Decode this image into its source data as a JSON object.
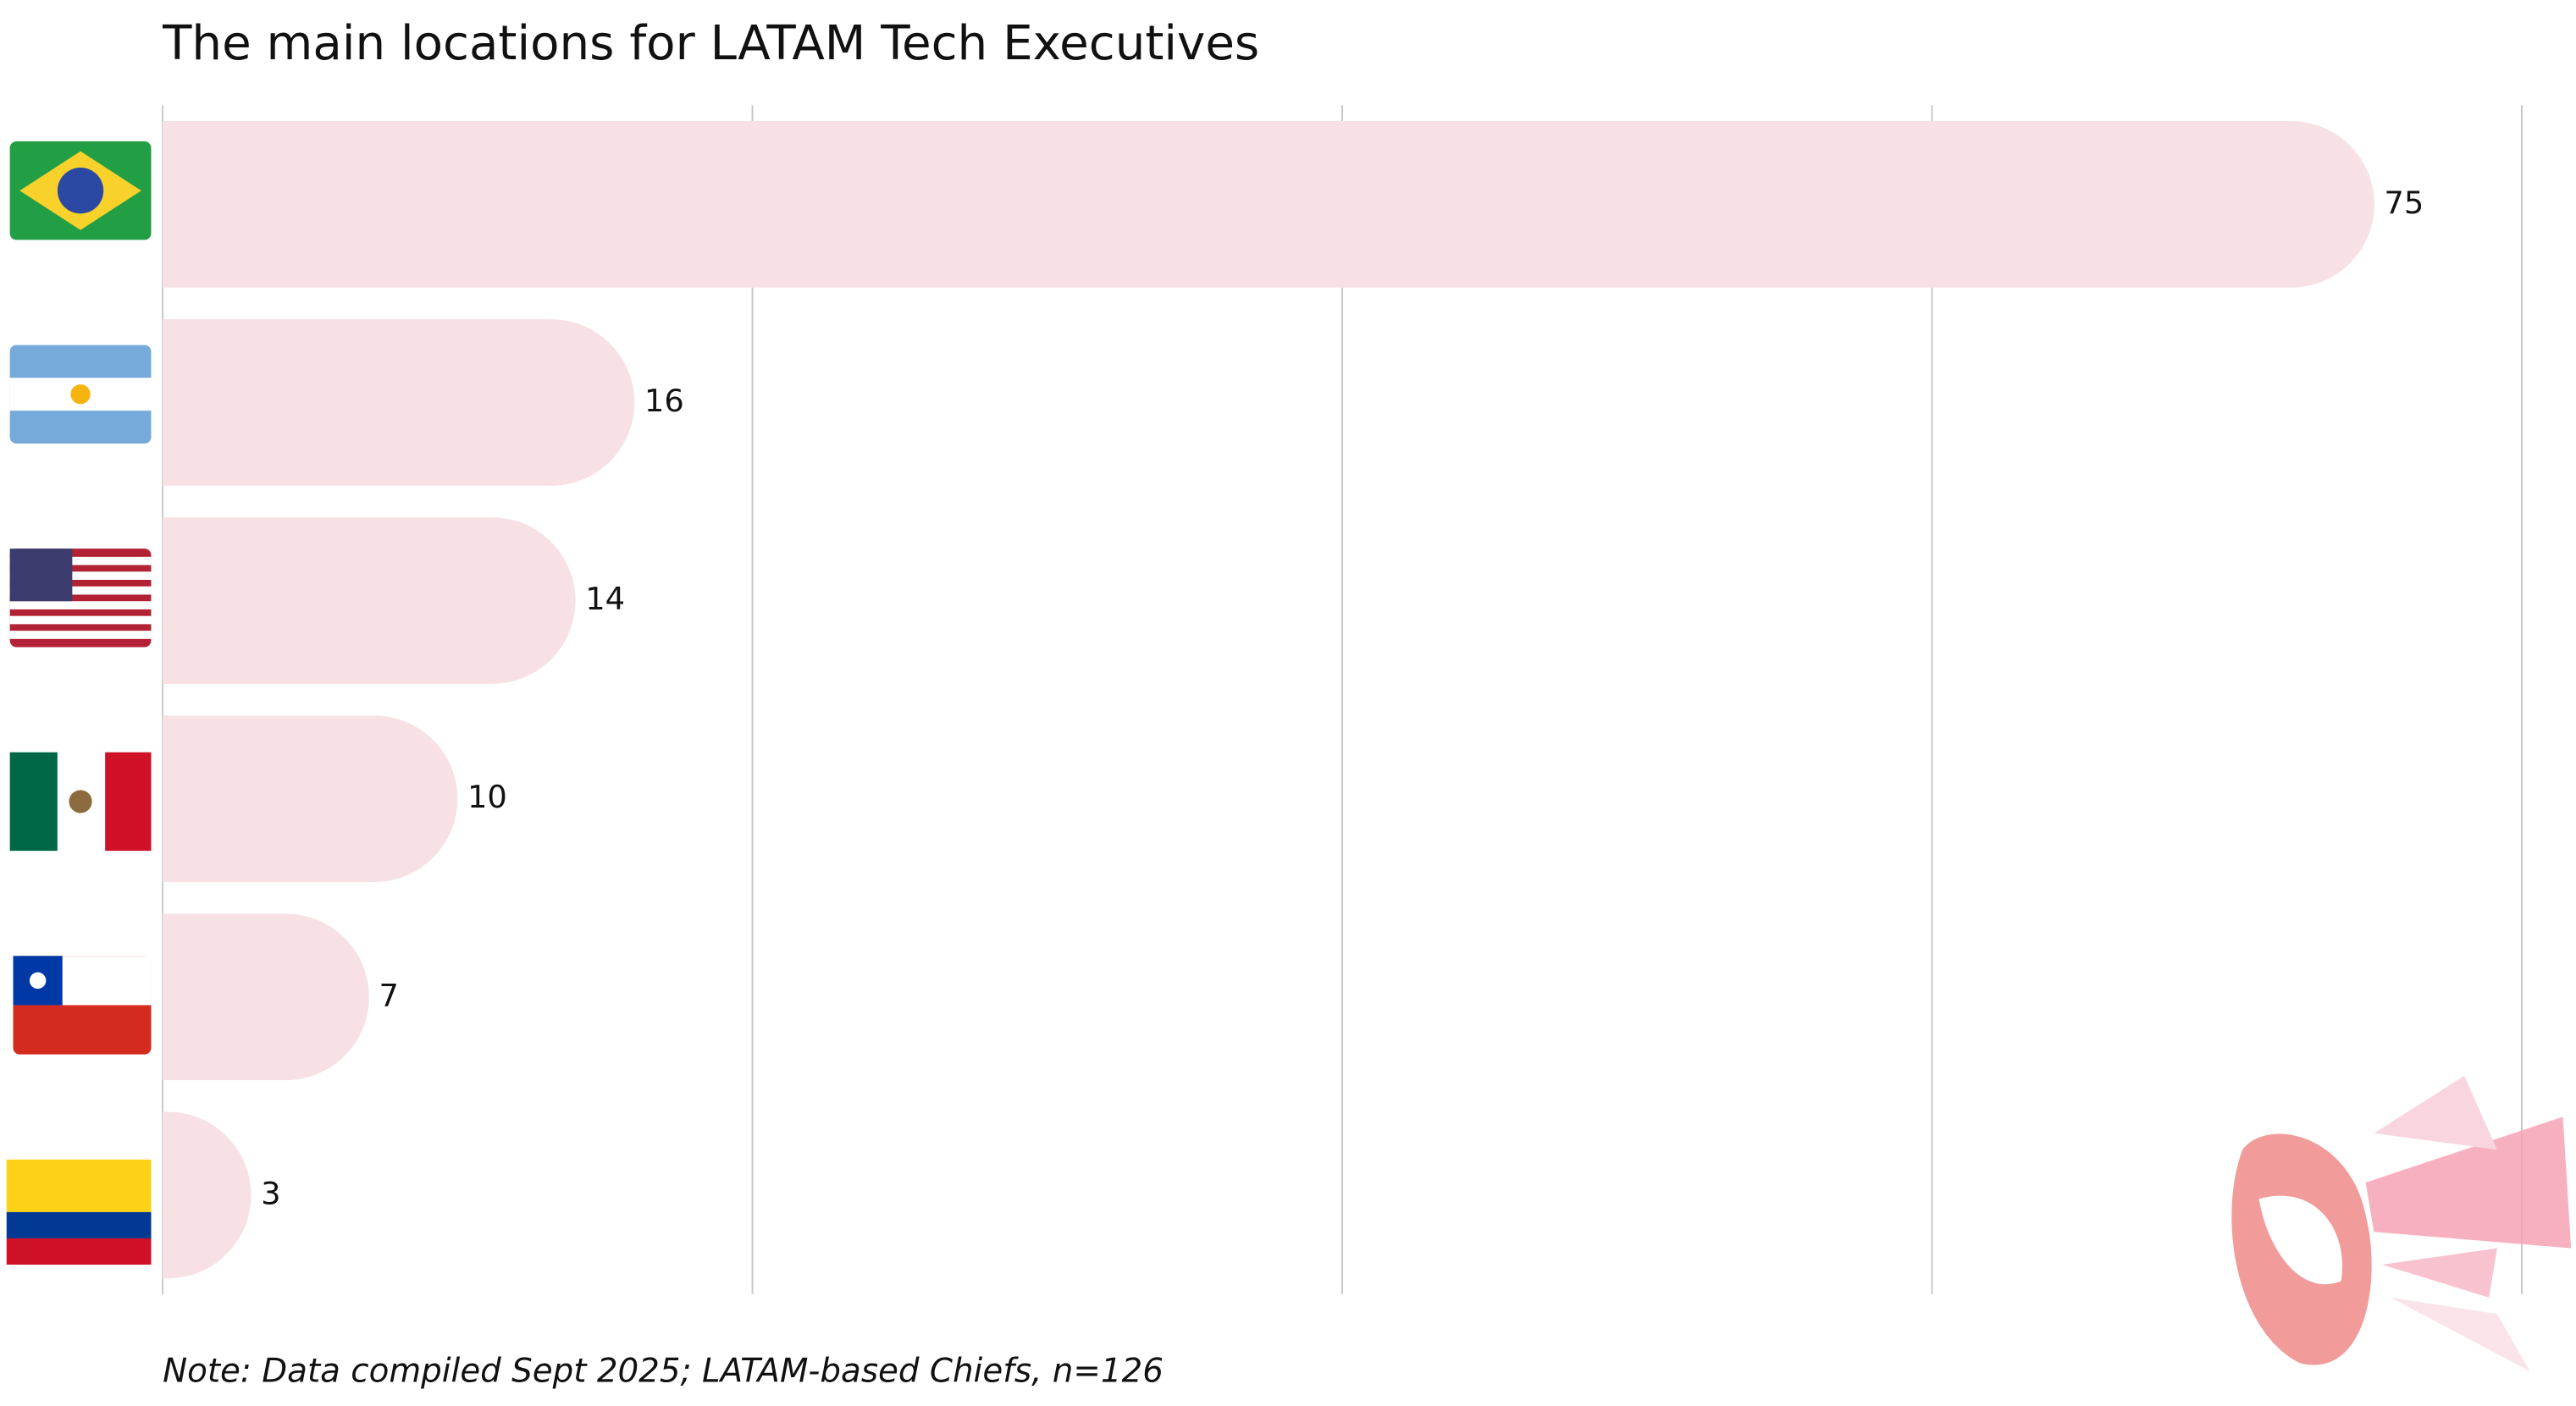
{
  "chart_data": {
    "type": "hbar",
    "title": "The main locations for LATAM Tech Executives",
    "note": "Note: Data compiled Sept 2025; LATAM-based Chiefs, n=126",
    "categories": [
      null,
      null,
      null,
      null,
      null,
      null
    ],
    "values": [
      75,
      16,
      14,
      10,
      7,
      3
    ],
    "color": "#f7e1e4",
    "xlim": [
      0,
      80
    ],
    "gridlines": [
      0,
      20,
      40,
      60,
      80
    ],
    "grid": true
  }
}
